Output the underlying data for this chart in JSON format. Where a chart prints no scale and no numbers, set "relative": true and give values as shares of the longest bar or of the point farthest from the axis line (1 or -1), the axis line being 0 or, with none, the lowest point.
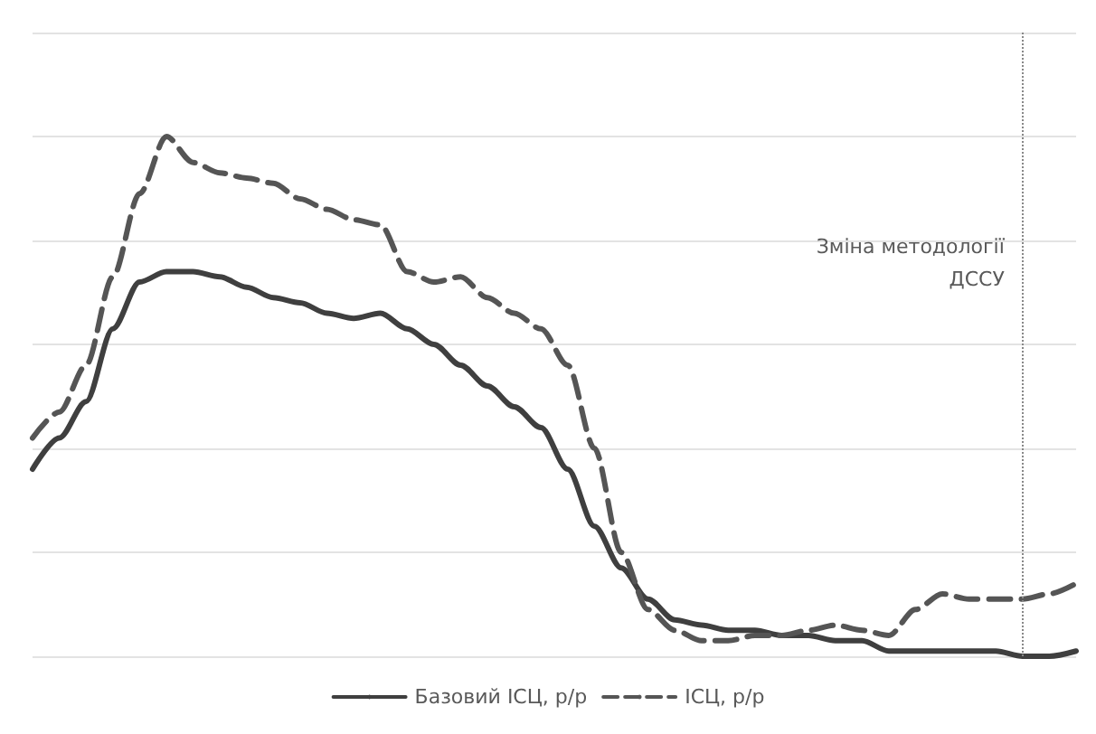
{
  "chart_data": {
    "type": "line",
    "relative": true,
    "grid": "y",
    "legend": "bottom",
    "marker": "none",
    "categories": [
      null,
      null,
      null,
      null,
      null,
      null,
      null,
      null,
      null,
      null,
      null,
      null,
      null,
      null,
      null,
      null,
      null,
      null,
      null,
      null,
      null,
      null,
      null,
      null,
      null,
      null,
      null,
      null,
      null,
      null,
      null,
      null,
      null,
      null,
      null,
      null,
      null,
      null,
      null,
      null
    ],
    "series": [
      {
        "name": "Базовий ІСЦ, р/р",
        "color": "#3f3f3f",
        "line_style": "solid",
        "values": [
          0.36,
          0.42,
          0.49,
          0.63,
          0.72,
          0.74,
          0.74,
          0.73,
          0.71,
          0.69,
          0.68,
          0.66,
          0.65,
          0.66,
          0.63,
          0.6,
          0.56,
          0.52,
          0.48,
          0.44,
          0.36,
          0.25,
          0.17,
          0.11,
          0.07,
          0.06,
          0.05,
          0.05,
          0.04,
          0.04,
          0.03,
          0.03,
          0.01,
          0.01,
          0.01,
          0.01,
          0.01,
          0,
          0,
          0.01
        ]
      },
      {
        "name": "ІСЦ, р/р",
        "color": "#555555",
        "line_style": "dashed",
        "values": [
          0.42,
          0.47,
          0.56,
          0.73,
          0.89,
          1,
          0.95,
          0.93,
          0.92,
          0.91,
          0.88,
          0.86,
          0.84,
          0.83,
          0.74,
          0.72,
          0.73,
          0.69,
          0.66,
          0.63,
          0.56,
          0.4,
          0.2,
          0.09,
          0.05,
          0.03,
          0.03,
          0.04,
          0.04,
          0.05,
          0.06,
          0.05,
          0.04,
          0.09,
          0.12,
          0.11,
          0.11,
          0.11,
          0.12,
          0.14
        ]
      }
    ],
    "annotations": [
      "Зміна методології\nДССУ"
    ]
  }
}
